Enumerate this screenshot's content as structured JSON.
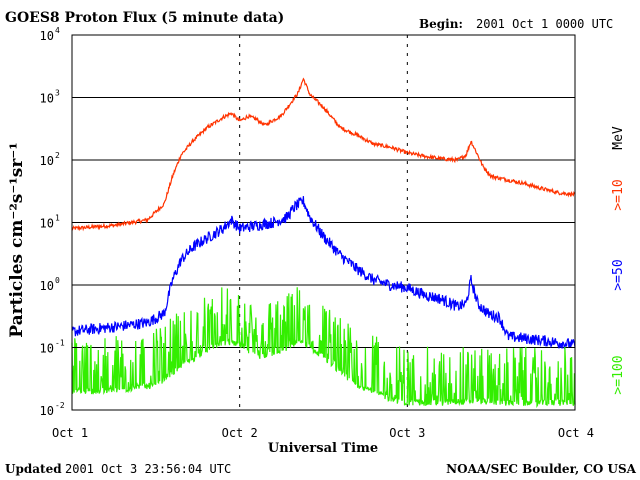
{
  "header": {
    "title": "GOES8 Proton Flux (5 minute data)",
    "begin_label": "Begin:",
    "begin_value": "2001 Oct 1 0000 UTC"
  },
  "footer": {
    "updated_label": "Updated",
    "updated_value": "2001 Oct  3 23:56:04 UTC",
    "credit": "NOAA/SEC Boulder, CO USA"
  },
  "chart_data": {
    "type": "line",
    "title": "GOES8 Proton Flux (5 minute data)",
    "xlabel": "Universal Time",
    "ylabel": "Particles cm⁻²s⁻¹sr⁻¹",
    "yscale": "log",
    "ylim": [
      0.01,
      10000
    ],
    "xlim": [
      0,
      3
    ],
    "x_unit": "days since Oct 1 0000 UTC",
    "x_ticks": [
      "Oct 1",
      "Oct 2",
      "Oct 3",
      "Oct 4"
    ],
    "y_ticks": [
      {
        "base": "10",
        "exp": "-2"
      },
      {
        "base": "10",
        "exp": "-1"
      },
      {
        "base": "10",
        "exp": "0"
      },
      {
        "base": "10",
        "exp": "1"
      },
      {
        "base": "10",
        "exp": "2"
      },
      {
        "base": "10",
        "exp": "3"
      },
      {
        "base": "10",
        "exp": "4"
      }
    ],
    "grid": true,
    "series": [
      {
        "name": ">=10 MeV",
        "color": "#ff3300",
        "x": [
          0.0,
          0.25,
          0.45,
          0.55,
          0.6,
          0.65,
          0.72,
          0.8,
          0.9,
          0.95,
          1.0,
          1.05,
          1.1,
          1.15,
          1.25,
          1.35,
          1.38,
          1.42,
          1.5,
          1.6,
          1.7,
          1.8,
          1.9,
          2.0,
          2.1,
          2.2,
          2.3,
          2.35,
          2.38,
          2.42,
          2.45,
          2.5,
          2.6,
          2.7,
          2.8,
          2.9,
          3.0
        ],
        "values": [
          8,
          9,
          11,
          20,
          55,
          120,
          200,
          320,
          480,
          560,
          420,
          500,
          450,
          360,
          520,
          1200,
          2000,
          1100,
          700,
          330,
          250,
          180,
          160,
          130,
          115,
          105,
          100,
          120,
          200,
          120,
          80,
          55,
          48,
          42,
          35,
          30,
          28
        ]
      },
      {
        "name": ">=50 MeV",
        "color": "#0000ff",
        "x": [
          0.0,
          0.15,
          0.3,
          0.45,
          0.55,
          0.6,
          0.65,
          0.72,
          0.8,
          0.9,
          0.95,
          1.0,
          1.1,
          1.2,
          1.28,
          1.33,
          1.38,
          1.42,
          1.5,
          1.6,
          1.7,
          1.8,
          1.9,
          2.0,
          2.1,
          2.2,
          2.3,
          2.35,
          2.38,
          2.42,
          2.48,
          2.55,
          2.6,
          2.7,
          2.8,
          2.9,
          3.0
        ],
        "values": [
          0.18,
          0.2,
          0.22,
          0.25,
          0.35,
          1.2,
          2.5,
          4,
          5.5,
          8,
          11,
          8,
          9,
          10,
          12,
          18,
          22,
          12,
          6,
          3,
          1.8,
          1.2,
          1,
          0.9,
          0.7,
          0.6,
          0.45,
          0.5,
          1.2,
          0.5,
          0.35,
          0.3,
          0.15,
          0.14,
          0.13,
          0.12,
          0.11
        ]
      },
      {
        "name": ">=100 MeV",
        "color": "#33ee00",
        "x": [
          0.0,
          0.1,
          0.2,
          0.35,
          0.5,
          0.6,
          0.7,
          0.8,
          0.9,
          1.0,
          1.1,
          1.2,
          1.3,
          1.35,
          1.4,
          1.5,
          1.6,
          1.7,
          1.8,
          1.9,
          2.0,
          2.2,
          2.4,
          2.6,
          2.8,
          3.0
        ],
        "values": [
          0.02,
          0.02,
          0.02,
          0.022,
          0.025,
          0.04,
          0.06,
          0.09,
          0.12,
          0.11,
          0.07,
          0.08,
          0.1,
          0.13,
          0.1,
          0.07,
          0.04,
          0.025,
          0.02,
          0.015,
          0.013,
          0.013,
          0.014,
          0.013,
          0.013,
          0.013
        ]
      }
    ],
    "right_labels": [
      {
        "text": "MeV",
        "color": "#000000"
      },
      {
        "text": ">=10",
        "color": "#ff3300"
      },
      {
        "text": ">=50",
        "color": "#0000ff"
      },
      {
        "text": ">=100",
        "color": "#33ee00"
      }
    ]
  }
}
